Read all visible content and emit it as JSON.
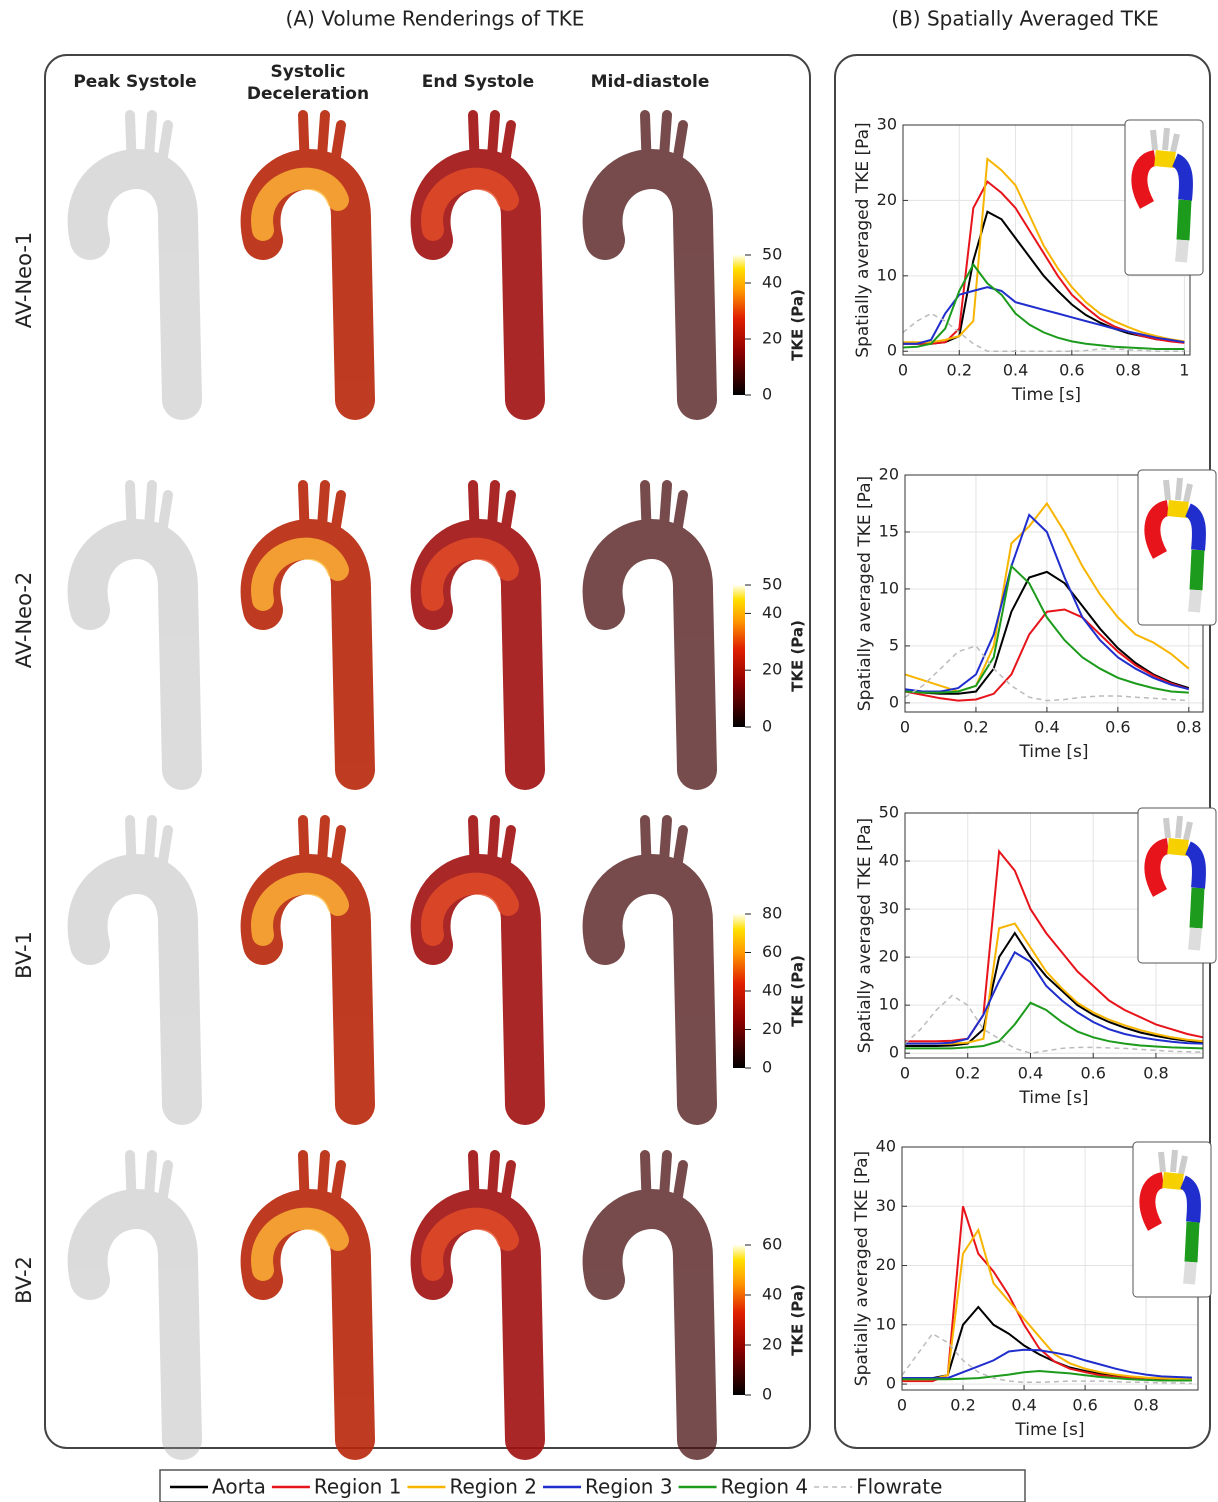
{
  "panel_a_title": "(A) Volume Renderings of TKE",
  "panel_b_title": "(B) Spatially Averaged TKE",
  "columns": [
    "Peak Systole",
    "Systolic Deceleration",
    "End Systole",
    "Mid-diastole"
  ],
  "rows": [
    "AV-Neo-1",
    "AV-Neo-2",
    "BV-1",
    "BV-2"
  ],
  "colorbars": [
    {
      "label": "TKE (Pa)",
      "lim": [
        0,
        50
      ],
      "ticks": [
        0,
        20,
        40,
        50
      ]
    },
    {
      "label": "TKE (Pa)",
      "lim": [
        0,
        50
      ],
      "ticks": [
        0,
        20,
        40,
        50
      ]
    },
    {
      "label": "TKE (Pa)",
      "lim": [
        0,
        80
      ],
      "ticks": [
        0,
        20,
        40,
        60,
        80
      ]
    },
    {
      "label": "TKE (Pa)",
      "lim": [
        0,
        60
      ],
      "ticks": [
        0,
        20,
        40,
        60
      ]
    }
  ],
  "chart_data": [
    {
      "type": "line",
      "ylabel": "Spatially averaged TKE [Pa]",
      "xlabel": "Time [s]",
      "grid": true,
      "x": [
        0,
        0.05,
        0.1,
        0.15,
        0.2,
        0.25,
        0.3,
        0.35,
        0.4,
        0.45,
        0.5,
        0.55,
        0.6,
        0.65,
        0.7,
        0.75,
        0.8,
        0.85,
        0.9,
        0.95,
        1
      ],
      "xlim": [
        0,
        1.02
      ],
      "xticks": [
        0,
        0.2,
        0.4,
        0.6,
        0.8,
        1
      ],
      "ylim": [
        -0.5,
        30
      ],
      "yticks": [
        0,
        10,
        20,
        30
      ],
      "series": [
        {
          "name": "Aorta",
          "color": "#000000",
          "values": [
            1,
            1,
            1,
            1.2,
            2,
            12,
            18.5,
            17.5,
            15,
            12.5,
            10,
            8,
            6.2,
            4.8,
            3.8,
            3,
            2.4,
            2,
            1.6,
            1.4,
            1.2
          ]
        },
        {
          "name": "Region 1",
          "color": "#e8141b",
          "values": [
            1,
            1,
            1,
            1.2,
            3,
            19,
            22.5,
            21,
            19,
            16,
            13,
            10,
            7.5,
            5.8,
            4.3,
            3.3,
            2.6,
            2,
            1.6,
            1.3,
            1.1
          ]
        },
        {
          "name": "Region 2",
          "color": "#f7b500",
          "values": [
            1.2,
            1.2,
            1.2,
            1.5,
            2,
            4,
            25.5,
            24,
            22,
            18,
            14,
            11,
            8.5,
            6.5,
            5,
            4,
            3.2,
            2.5,
            2,
            1.6,
            1.3
          ]
        },
        {
          "name": "Region 3",
          "color": "#1f2ecc",
          "values": [
            1,
            1,
            1.5,
            5,
            7.5,
            8,
            8.5,
            8,
            6.5,
            6,
            5.5,
            5,
            4.5,
            4,
            3.5,
            3,
            2.6,
            2.2,
            1.8,
            1.5,
            1.2
          ]
        },
        {
          "name": "Region 4",
          "color": "#1c9b1c",
          "values": [
            0.5,
            0.6,
            1,
            3,
            8,
            11.5,
            9,
            7.5,
            5,
            3.5,
            2.5,
            1.8,
            1.3,
            1,
            0.8,
            0.6,
            0.5,
            0.4,
            0.3,
            0.3,
            0.3
          ]
        },
        {
          "name": "Flowrate",
          "color": "#bbbbbb",
          "dashed": true,
          "values": [
            2.5,
            4,
            5,
            4,
            2.5,
            1,
            0,
            0,
            0,
            0,
            0,
            0,
            0,
            0.1,
            0.3,
            0.3,
            0.2,
            0.1,
            0,
            0,
            0
          ]
        }
      ]
    },
    {
      "type": "line",
      "ylabel": "Spatially averaged TKE [Pa]",
      "xlabel": "Time [s]",
      "grid": true,
      "x": [
        0,
        0.05,
        0.1,
        0.15,
        0.2,
        0.25,
        0.3,
        0.35,
        0.4,
        0.45,
        0.5,
        0.55,
        0.6,
        0.65,
        0.7,
        0.75,
        0.8
      ],
      "xlim": [
        0,
        0.84
      ],
      "xticks": [
        0,
        0.2,
        0.4,
        0.6,
        0.8
      ],
      "ylim": [
        -0.8,
        20
      ],
      "yticks": [
        0,
        5,
        10,
        15,
        20
      ],
      "series": [
        {
          "name": "Aorta",
          "color": "#000000",
          "values": [
            1,
            0.9,
            0.8,
            0.8,
            1,
            3,
            8,
            11,
            11.5,
            10.5,
            8.5,
            6.5,
            4.8,
            3.5,
            2.5,
            1.8,
            1.3
          ]
        },
        {
          "name": "Region 1",
          "color": "#e8141b",
          "values": [
            1,
            0.7,
            0.4,
            0.2,
            0.3,
            0.8,
            2.5,
            6,
            8,
            8.2,
            7.5,
            6,
            4.5,
            3.3,
            2.4,
            1.7,
            1.2
          ]
        },
        {
          "name": "Region 2",
          "color": "#f7b500",
          "values": [
            2.5,
            2,
            1.5,
            1,
            1.5,
            5,
            14,
            15.5,
            17.5,
            15,
            12,
            9.5,
            7.5,
            6,
            5.3,
            4.3,
            3
          ]
        },
        {
          "name": "Region 3",
          "color": "#1f2ecc",
          "values": [
            1.2,
            1,
            1,
            1.3,
            2.5,
            6,
            12,
            16.5,
            15,
            11,
            7.5,
            5.5,
            4,
            3,
            2.2,
            1.6,
            1.2
          ]
        },
        {
          "name": "Region 4",
          "color": "#1c9b1c",
          "values": [
            1,
            0.9,
            0.9,
            1,
            1.5,
            4,
            12,
            10.5,
            7.5,
            5.5,
            4,
            3,
            2.2,
            1.7,
            1.3,
            1,
            0.9
          ]
        },
        {
          "name": "Flowrate",
          "color": "#bbbbbb",
          "dashed": true,
          "values": [
            0.5,
            1.5,
            3,
            4.5,
            5,
            3,
            1.5,
            0.5,
            0.2,
            0.3,
            0.5,
            0.6,
            0.6,
            0.5,
            0.4,
            0.3,
            0.2
          ]
        }
      ]
    },
    {
      "type": "line",
      "ylabel": "Spatially averaged TKE [Pa]",
      "xlabel": "Time [s]",
      "grid": true,
      "x": [
        0,
        0.05,
        0.1,
        0.15,
        0.2,
        0.25,
        0.3,
        0.35,
        0.4,
        0.45,
        0.5,
        0.55,
        0.6,
        0.65,
        0.7,
        0.75,
        0.8,
        0.85,
        0.9,
        0.95
      ],
      "xlim": [
        0,
        0.95
      ],
      "xticks": [
        0,
        0.2,
        0.4,
        0.6,
        0.8
      ],
      "ylim": [
        -1,
        50
      ],
      "yticks": [
        0,
        10,
        20,
        30,
        40,
        50
      ],
      "series": [
        {
          "name": "Aorta",
          "color": "#000000",
          "values": [
            1.5,
            1.5,
            1.5,
            1.6,
            2,
            5,
            20,
            25,
            20,
            16,
            13,
            10,
            8,
            6.5,
            5.3,
            4.3,
            3.6,
            3,
            2.6,
            2.2
          ]
        },
        {
          "name": "Region 1",
          "color": "#e8141b",
          "values": [
            2.5,
            2.5,
            2.5,
            2.6,
            3,
            8,
            42,
            38,
            30,
            25,
            21,
            17,
            14,
            11,
            9,
            7.5,
            6,
            5,
            4,
            3.3
          ]
        },
        {
          "name": "Region 2",
          "color": "#f7b500",
          "values": [
            2,
            2,
            2,
            2,
            2.2,
            3,
            26,
            27,
            22,
            17,
            13.5,
            10.5,
            8.5,
            7,
            5.8,
            4.8,
            4,
            3.3,
            2.8,
            2.5
          ]
        },
        {
          "name": "Region 3",
          "color": "#1f2ecc",
          "values": [
            2,
            2,
            2,
            2.2,
            3,
            8,
            15,
            21,
            19,
            14,
            11,
            8.5,
            6.5,
            5,
            4,
            3.3,
            2.8,
            2.4,
            2.1,
            2
          ]
        },
        {
          "name": "Region 4",
          "color": "#1c9b1c",
          "values": [
            1,
            1,
            1,
            1,
            1.2,
            1.5,
            2.5,
            6,
            10.5,
            9,
            6.5,
            4.5,
            3.3,
            2.5,
            2,
            1.6,
            1.4,
            1.2,
            1.1,
            1
          ]
        },
        {
          "name": "Flowrate",
          "color": "#bbbbbb",
          "dashed": true,
          "values": [
            2,
            5,
            9,
            12,
            10,
            5,
            3,
            1,
            0,
            0.5,
            1,
            1.2,
            1.2,
            1.1,
            1,
            0.8,
            0.6,
            0.4,
            0.3,
            0.2
          ]
        }
      ]
    },
    {
      "type": "line",
      "ylabel": "Spatially averaged TKE [Pa]",
      "xlabel": "Time [s]",
      "grid": true,
      "x": [
        0,
        0.05,
        0.1,
        0.15,
        0.2,
        0.25,
        0.3,
        0.35,
        0.4,
        0.45,
        0.5,
        0.55,
        0.6,
        0.65,
        0.7,
        0.75,
        0.8,
        0.85,
        0.9,
        0.95
      ],
      "xlim": [
        0,
        0.97
      ],
      "xticks": [
        0,
        0.2,
        0.4,
        0.6,
        0.8
      ],
      "ylim": [
        -1,
        40
      ],
      "yticks": [
        0,
        10,
        20,
        30,
        40
      ],
      "series": [
        {
          "name": "Aorta",
          "color": "#000000",
          "values": [
            1,
            1,
            1,
            1.5,
            10,
            13,
            10,
            8.5,
            6.5,
            5,
            3.8,
            2.8,
            2.2,
            1.7,
            1.4,
            1.2,
            1,
            0.9,
            0.8,
            0.7
          ]
        },
        {
          "name": "Region 1",
          "color": "#e8141b",
          "values": [
            0.5,
            0.5,
            0.5,
            1.5,
            30,
            22,
            19,
            15,
            10,
            6,
            3.8,
            2.6,
            2,
            1.5,
            1.2,
            1,
            0.9,
            0.8,
            0.7,
            0.6
          ]
        },
        {
          "name": "Region 2",
          "color": "#f7b500",
          "values": [
            0.8,
            0.8,
            0.8,
            1.5,
            22,
            26,
            17,
            14,
            11,
            8,
            5,
            3.5,
            2.6,
            2,
            1.6,
            1.3,
            1.1,
            1,
            0.9,
            0.8
          ]
        },
        {
          "name": "Region 3",
          "color": "#1f2ecc",
          "values": [
            1,
            1,
            1,
            1,
            2,
            3,
            4,
            5.5,
            5.8,
            5.7,
            5.3,
            4.8,
            4,
            3.3,
            2.6,
            2,
            1.6,
            1.3,
            1.2,
            1.1
          ]
        },
        {
          "name": "Region 4",
          "color": "#1c9b1c",
          "values": [
            0.8,
            0.8,
            0.8,
            0.8,
            0.9,
            1,
            1.3,
            1.6,
            2,
            2.2,
            2,
            1.8,
            1.5,
            1.2,
            1,
            0.8,
            0.7,
            0.6,
            0.6,
            0.6
          ]
        },
        {
          "name": "Flowrate",
          "color": "#bbbbbb",
          "dashed": true,
          "values": [
            1.5,
            5,
            8.5,
            7,
            4,
            2,
            1,
            0.5,
            0.3,
            0.3,
            0.4,
            0.5,
            0.5,
            0.5,
            0.4,
            0.3,
            0.3,
            0.2,
            0.2,
            0.1
          ]
        }
      ]
    }
  ]
}
